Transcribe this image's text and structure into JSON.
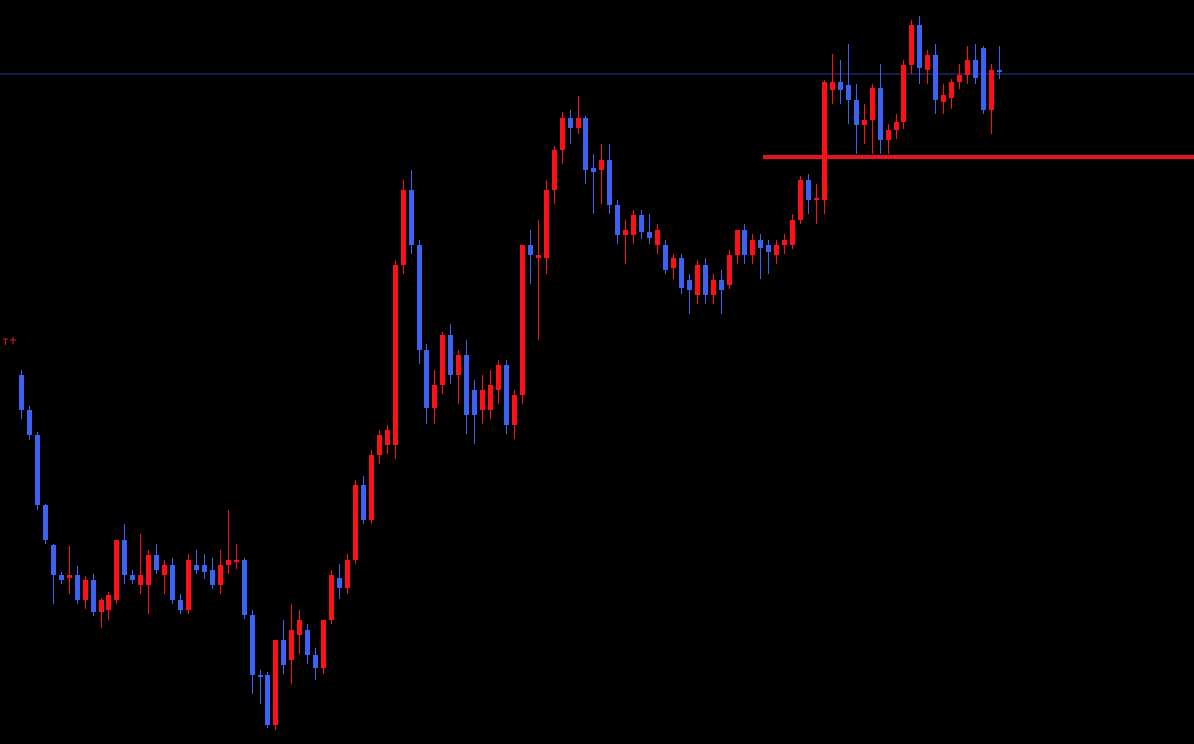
{
  "chart_data": {
    "type": "candlestick",
    "ylim": [
      0,
      744
    ],
    "up_color": "#ff1018",
    "down_color": "#3b62f0",
    "levels": [
      {
        "value": 587,
        "color": "#e8141c"
      },
      {
        "value": 670,
        "color": "#2a3a9a"
      }
    ],
    "ohlc": [
      [
        369,
        374,
        325,
        334
      ],
      [
        334,
        338,
        304,
        309
      ],
      [
        309,
        312,
        234,
        239
      ],
      [
        239,
        240,
        200,
        204
      ],
      [
        199,
        200,
        140,
        169
      ],
      [
        169,
        172,
        160,
        164
      ],
      [
        166,
        198,
        150,
        169
      ],
      [
        169,
        178,
        140,
        144
      ],
      [
        144,
        168,
        135,
        164
      ],
      [
        164,
        170,
        128,
        132
      ],
      [
        132,
        146,
        116,
        144
      ],
      [
        134,
        152,
        124,
        149
      ],
      [
        144,
        204,
        140,
        204
      ],
      [
        204,
        220,
        160,
        169
      ],
      [
        169,
        174,
        160,
        164
      ],
      [
        159,
        210,
        150,
        169
      ],
      [
        159,
        194,
        130,
        189
      ],
      [
        189,
        200,
        170,
        174
      ],
      [
        169,
        184,
        150,
        179
      ],
      [
        179,
        186,
        140,
        144
      ],
      [
        144,
        150,
        130,
        134
      ],
      [
        134,
        190,
        130,
        184
      ],
      [
        179,
        194,
        170,
        174
      ],
      [
        179,
        190,
        165,
        172
      ],
      [
        174,
        186,
        155,
        159
      ],
      [
        159,
        194,
        150,
        179
      ],
      [
        179,
        234,
        170,
        184
      ],
      [
        182,
        200,
        175,
        184
      ],
      [
        184,
        186,
        125,
        129
      ],
      [
        129,
        134,
        50,
        69
      ],
      [
        69,
        74,
        40,
        67
      ],
      [
        69,
        72,
        16,
        19
      ],
      [
        19,
        104,
        14,
        104
      ],
      [
        104,
        124,
        70,
        79
      ],
      [
        84,
        140,
        60,
        114
      ],
      [
        109,
        134,
        90,
        124
      ],
      [
        114,
        120,
        80,
        89
      ],
      [
        89,
        96,
        64,
        76
      ],
      [
        76,
        124,
        70,
        124
      ],
      [
        124,
        174,
        120,
        169
      ],
      [
        166,
        180,
        145,
        156
      ],
      [
        156,
        190,
        150,
        184
      ],
      [
        184,
        264,
        180,
        259
      ],
      [
        259,
        268,
        220,
        224
      ],
      [
        224,
        294,
        220,
        289
      ],
      [
        289,
        314,
        280,
        309
      ],
      [
        299,
        319,
        290,
        314
      ],
      [
        299,
        484,
        285,
        479
      ],
      [
        479,
        564,
        470,
        554
      ],
      [
        554,
        574,
        490,
        499
      ],
      [
        499,
        504,
        380,
        394
      ],
      [
        394,
        400,
        320,
        336
      ],
      [
        336,
        374,
        320,
        359
      ],
      [
        359,
        412,
        350,
        409
      ],
      [
        409,
        420,
        360,
        369
      ],
      [
        369,
        394,
        340,
        389
      ],
      [
        389,
        404,
        310,
        329
      ],
      [
        354,
        364,
        300,
        329
      ],
      [
        334,
        369,
        320,
        354
      ],
      [
        334,
        374,
        325,
        359
      ],
      [
        354,
        384,
        340,
        379
      ],
      [
        379,
        384,
        310,
        319
      ],
      [
        319,
        354,
        305,
        349
      ],
      [
        349,
        499,
        340,
        499
      ],
      [
        499,
        514,
        460,
        489
      ],
      [
        486,
        524,
        404,
        489
      ],
      [
        486,
        564,
        470,
        554
      ],
      [
        554,
        598,
        540,
        594
      ],
      [
        594,
        632,
        580,
        626
      ],
      [
        626,
        634,
        600,
        616
      ],
      [
        616,
        648,
        610,
        626
      ],
      [
        626,
        628,
        560,
        574
      ],
      [
        576,
        590,
        530,
        572
      ],
      [
        574,
        600,
        540,
        584
      ],
      [
        584,
        600,
        530,
        539
      ],
      [
        539,
        544,
        500,
        509
      ],
      [
        509,
        524,
        480,
        514
      ],
      [
        509,
        534,
        500,
        529
      ],
      [
        529,
        534,
        505,
        512
      ],
      [
        512,
        530,
        500,
        506
      ],
      [
        499,
        520,
        490,
        514
      ],
      [
        499,
        504,
        470,
        474
      ],
      [
        476,
        490,
        465,
        486
      ],
      [
        486,
        490,
        450,
        456
      ],
      [
        464,
        470,
        430,
        454
      ],
      [
        449,
        484,
        440,
        479
      ],
      [
        479,
        486,
        440,
        449
      ],
      [
        449,
        470,
        440,
        464
      ],
      [
        464,
        474,
        430,
        454
      ],
      [
        459,
        494,
        455,
        489
      ],
      [
        489,
        514,
        480,
        514
      ],
      [
        514,
        520,
        480,
        489
      ],
      [
        489,
        510,
        480,
        504
      ],
      [
        504,
        510,
        465,
        496
      ],
      [
        499,
        504,
        470,
        492
      ],
      [
        489,
        504,
        480,
        499
      ],
      [
        499,
        510,
        490,
        504
      ],
      [
        499,
        530,
        495,
        524
      ],
      [
        524,
        568,
        520,
        564
      ],
      [
        564,
        570,
        530,
        544
      ],
      [
        544,
        560,
        520,
        546
      ],
      [
        544,
        664,
        530,
        662
      ],
      [
        654,
        690,
        640,
        662
      ],
      [
        662,
        684,
        640,
        654
      ],
      [
        659,
        700,
        620,
        644
      ],
      [
        644,
        660,
        590,
        619
      ],
      [
        619,
        640,
        600,
        624
      ],
      [
        624,
        660,
        590,
        656
      ],
      [
        656,
        680,
        590,
        604
      ],
      [
        604,
        620,
        590,
        614
      ],
      [
        614,
        630,
        605,
        622
      ],
      [
        622,
        684,
        615,
        679
      ],
      [
        679,
        724,
        670,
        719
      ],
      [
        719,
        728,
        660,
        676
      ],
      [
        674,
        694,
        660,
        689
      ],
      [
        689,
        700,
        630,
        644
      ],
      [
        642,
        660,
        630,
        649
      ],
      [
        646,
        665,
        635,
        662
      ],
      [
        662,
        680,
        655,
        669
      ],
      [
        669,
        698,
        660,
        684
      ],
      [
        684,
        700,
        660,
        666
      ],
      [
        696,
        698,
        630,
        634
      ],
      [
        634,
        680,
        610,
        674
      ],
      [
        674,
        698,
        665,
        672
      ]
    ]
  }
}
